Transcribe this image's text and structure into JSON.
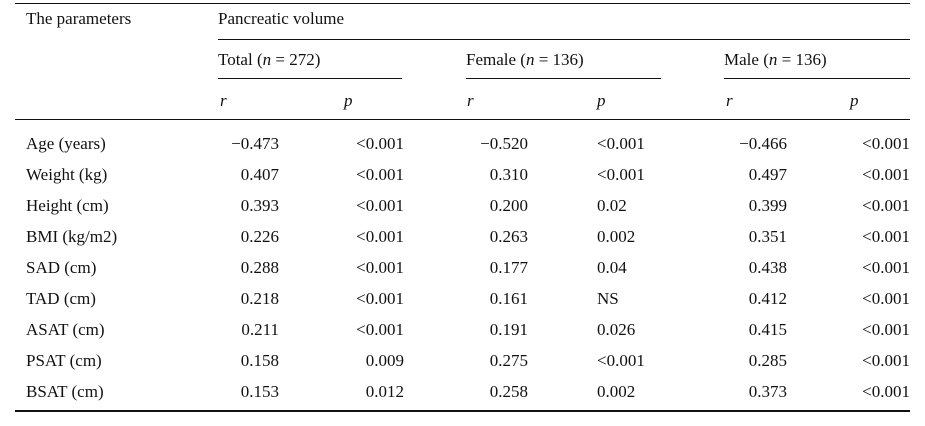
{
  "table": {
    "stub_header": "The parameters",
    "spanner_header": "Pancreatic volume",
    "groups": [
      {
        "label": "Total",
        "n_prefix": "(",
        "n_var": "n",
        "n_value": " = 272)"
      },
      {
        "label": "Female",
        "n_prefix": "(",
        "n_var": "n",
        "n_value": " = 136)"
      },
      {
        "label": "Male",
        "n_prefix": "(",
        "n_var": "n",
        "n_value": " = 136)"
      }
    ],
    "subheaders": [
      "r",
      "p",
      "r",
      "p",
      "r",
      "p"
    ],
    "rows": [
      {
        "label": "Age (years)",
        "cells": [
          "−0.473",
          "<0.001",
          "−0.520",
          "<0.001",
          "−0.466",
          "<0.001"
        ]
      },
      {
        "label": "Weight (kg)",
        "cells": [
          "0.407",
          "<0.001",
          "0.310",
          "<0.001",
          "0.497",
          "<0.001"
        ]
      },
      {
        "label": "Height (cm)",
        "cells": [
          "0.393",
          "<0.001",
          "0.200",
          "0.02",
          "0.399",
          "<0.001"
        ]
      },
      {
        "label": "BMI (kg/m2)",
        "cells": [
          "0.226",
          "<0.001",
          "0.263",
          "0.002",
          "0.351",
          "<0.001"
        ]
      },
      {
        "label": "SAD (cm)",
        "cells": [
          "0.288",
          "<0.001",
          "0.177",
          "0.04",
          "0.438",
          "<0.001"
        ]
      },
      {
        "label": "TAD (cm)",
        "cells": [
          "0.218",
          "<0.001",
          "0.161",
          "NS",
          "0.412",
          "<0.001"
        ]
      },
      {
        "label": "ASAT (cm)",
        "cells": [
          "0.211",
          "<0.001",
          "0.191",
          "0.026",
          "0.415",
          "<0.001"
        ]
      },
      {
        "label": "PSAT (cm)",
        "cells": [
          "0.158",
          "0.009",
          "0.275",
          "<0.001",
          "0.285",
          "<0.001"
        ]
      },
      {
        "label": "BSAT (cm)",
        "cells": [
          "0.153",
          "0.012",
          "0.258",
          "0.002",
          "0.373",
          "<0.001"
        ]
      }
    ]
  }
}
